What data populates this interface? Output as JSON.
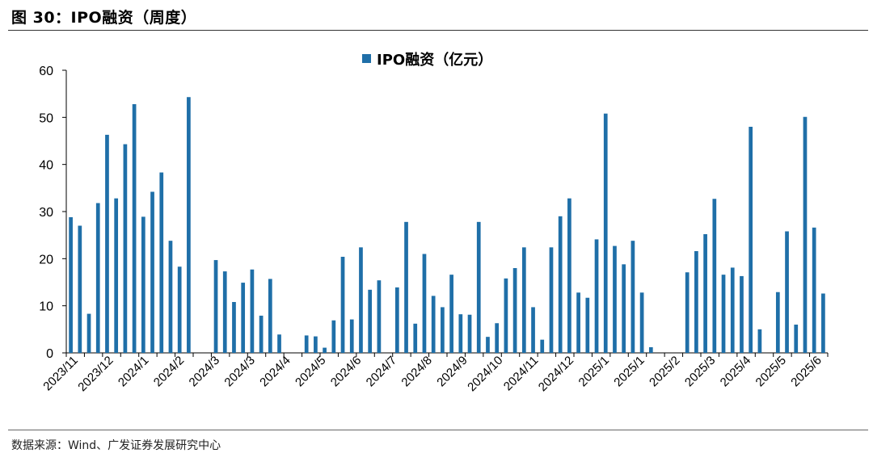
{
  "header": {
    "title": "图 30：IPO融资（周度）"
  },
  "footer": {
    "source": "数据来源：Wind、广发证券发展研究中心"
  },
  "colors": {
    "bar": "#1f6fa8",
    "axis": "#000000"
  },
  "chart_data": {
    "type": "bar",
    "title": "",
    "xlabel": "",
    "ylabel": "",
    "ylim": [
      0,
      60
    ],
    "yticks": [
      0,
      10,
      20,
      30,
      40,
      50,
      60
    ],
    "grid": false,
    "legend_position": "top-center",
    "series": [
      {
        "name": "IPO融资（亿元）",
        "values": [
          28.8,
          27.0,
          8.3,
          31.8,
          46.3,
          32.8,
          44.3,
          52.8,
          28.9,
          34.2,
          38.3,
          23.8,
          18.3,
          54.3,
          0,
          0,
          19.7,
          17.3,
          10.8,
          14.9,
          17.7,
          7.9,
          15.7,
          3.9,
          0,
          0,
          3.7,
          3.5,
          1.1,
          6.9,
          20.4,
          7.1,
          22.4,
          13.4,
          15.4,
          0,
          13.9,
          27.8,
          6.2,
          21.0,
          12.1,
          9.7,
          16.6,
          8.2,
          8.1,
          27.8,
          3.4,
          6.3,
          15.8,
          18.0,
          22.4,
          9.7,
          2.8,
          22.4,
          29.0,
          32.8,
          12.8,
          11.7,
          24.1,
          50.8,
          22.7,
          18.8,
          23.8,
          12.8,
          1.2,
          0,
          0,
          0,
          17.1,
          21.6,
          25.2,
          32.7,
          16.6,
          18.1,
          16.3,
          48.0,
          5.0,
          0,
          12.9,
          25.8,
          6.0,
          50.1,
          26.6,
          12.6
        ]
      }
    ],
    "x_tick_labels": [
      "2023/11",
      "2023/12",
      "2024/1",
      "2024/2",
      "2024/3",
      "2024/3",
      "2024/4",
      "2024/5",
      "2024/6",
      "2024/7",
      "2024/8",
      "2024/9",
      "2024/10",
      "2024/11",
      "2024/12",
      "2025/1",
      "2025/1",
      "2025/2",
      "2025/3",
      "2025/4",
      "2025/5",
      "2025/6"
    ]
  }
}
